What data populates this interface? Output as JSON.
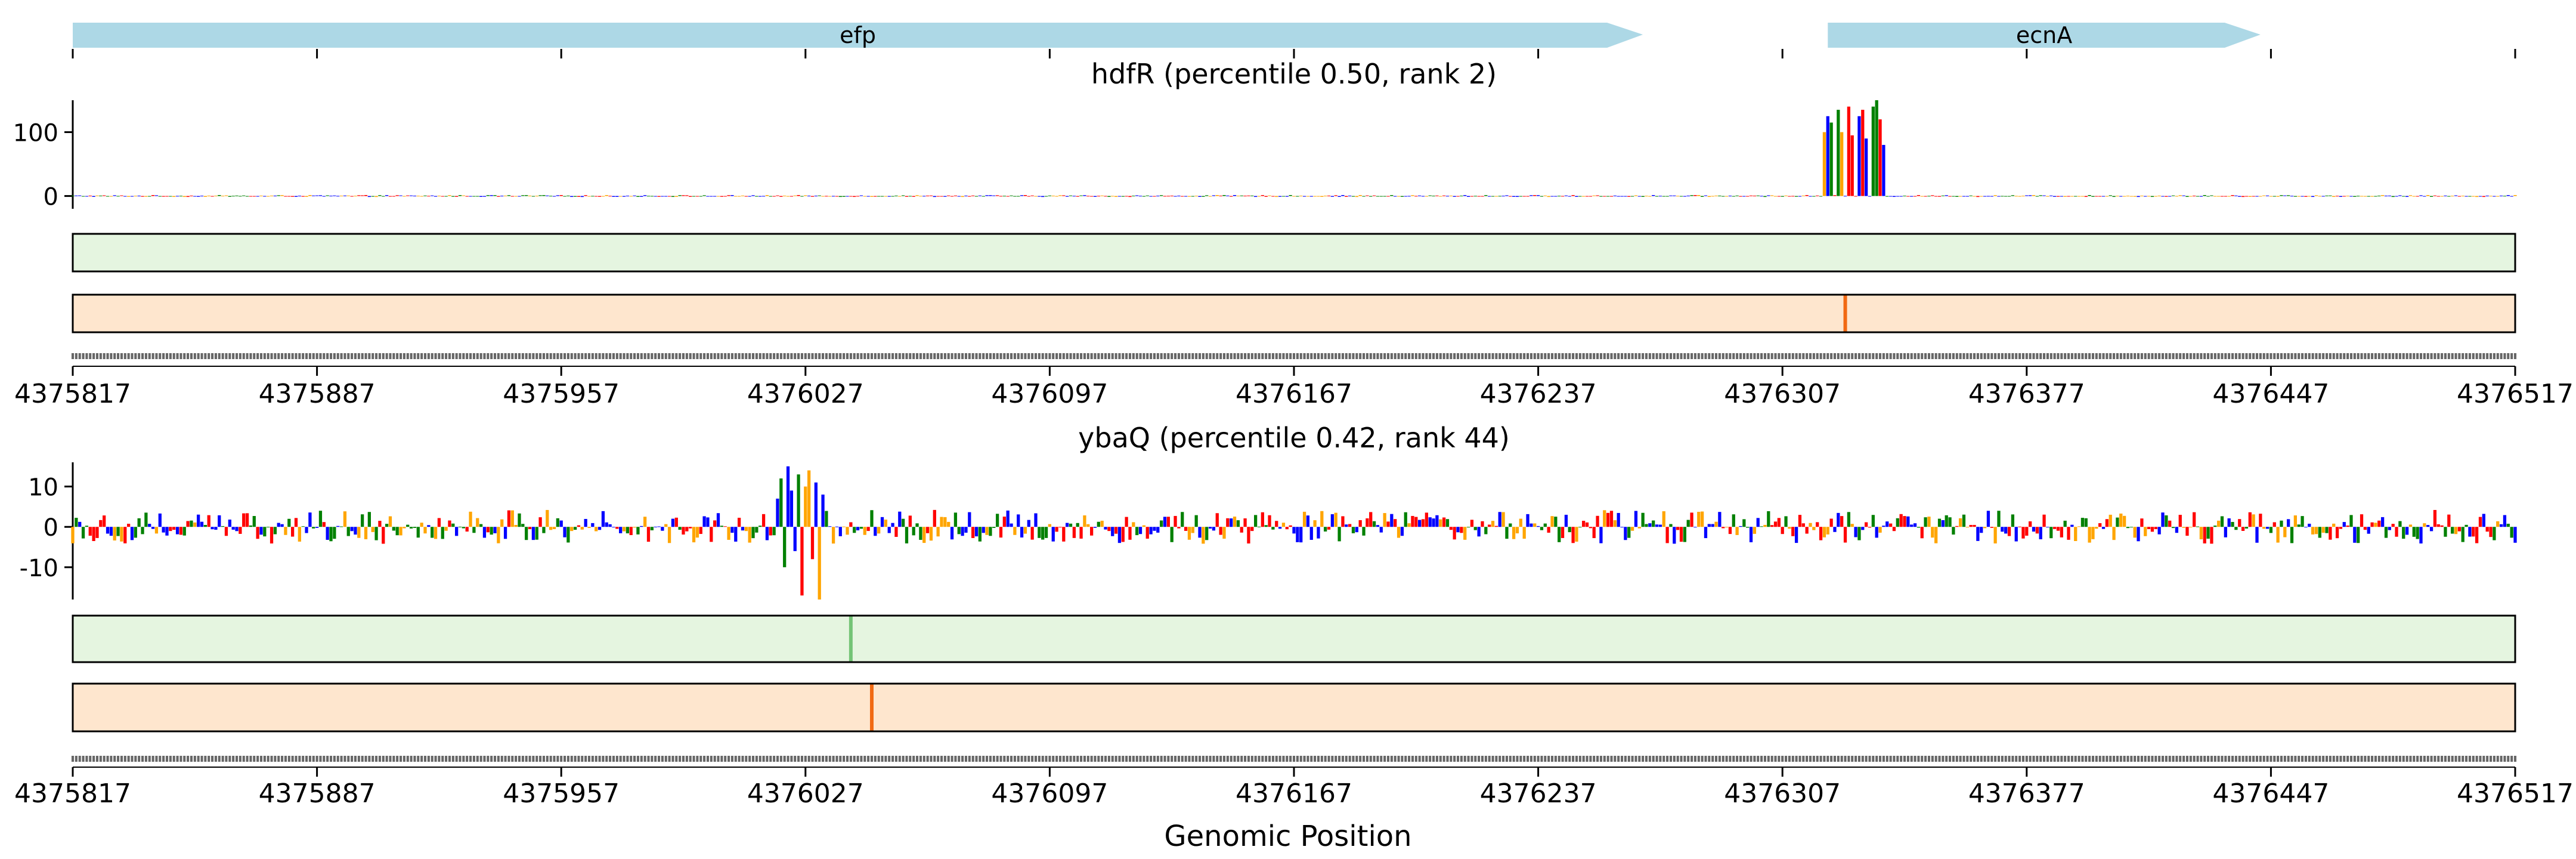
{
  "xlabel": "Genomic Position",
  "xrange": [
    4375817,
    4376517
  ],
  "x_ticks": [
    4375817,
    4375887,
    4375957,
    4376027,
    4376097,
    4376167,
    4376237,
    4376307,
    4376377,
    4376447,
    4376517
  ],
  "genes": [
    {
      "name": "efp",
      "start": 4375817,
      "end": 4376267,
      "strand": "+",
      "color": "#add8e6"
    },
    {
      "name": "ecnA",
      "start": 4376320,
      "end": 4376444,
      "strand": "+",
      "color": "#add8e6"
    }
  ],
  "colors": {
    "A": "#008000",
    "C": "#0000ff",
    "G": "#ffa500",
    "T": "#ff0000",
    "track1": "#e5f5e0",
    "track2": "#fee6ce",
    "track1_hot": "#74c476",
    "track2_hot": "#f16913"
  },
  "chart_data": [
    {
      "type": "bar",
      "title": "hdfR (percentile 0.50, rank 2)",
      "ylim": [
        -20,
        150
      ],
      "y_ticks": [
        0,
        100
      ],
      "baseline_noise": 3,
      "peaks": [
        {
          "x": 4376319,
          "value": 100
        },
        {
          "x": 4376320,
          "value": 125
        },
        {
          "x": 4376321,
          "value": 115
        },
        {
          "x": 4376323,
          "value": 135
        },
        {
          "x": 4376324,
          "value": 100
        },
        {
          "x": 4376326,
          "value": 140
        },
        {
          "x": 4376327,
          "value": 95
        },
        {
          "x": 4376329,
          "value": 125
        },
        {
          "x": 4376330,
          "value": 135
        },
        {
          "x": 4376331,
          "value": 90
        },
        {
          "x": 4376333,
          "value": 140
        },
        {
          "x": 4376334,
          "value": 150
        },
        {
          "x": 4376335,
          "value": 120
        },
        {
          "x": 4376336,
          "value": 80
        }
      ],
      "heat_tracks": [
        {
          "name": "track-green",
          "hot": []
        },
        {
          "name": "track-orange",
          "hot": [
            4376325
          ]
        }
      ]
    },
    {
      "type": "bar",
      "title": "ybaQ (percentile 0.42, rank 44)",
      "ylim": [
        -18,
        16
      ],
      "y_ticks": [
        -10,
        0,
        10
      ],
      "baseline_noise": 3,
      "peaks": [
        {
          "x": 4376019,
          "value": 7
        },
        {
          "x": 4376020,
          "value": 12
        },
        {
          "x": 4376021,
          "value": -10
        },
        {
          "x": 4376022,
          "value": 15
        },
        {
          "x": 4376023,
          "value": 9
        },
        {
          "x": 4376024,
          "value": -6
        },
        {
          "x": 4376025,
          "value": 13
        },
        {
          "x": 4376026,
          "value": -17
        },
        {
          "x": 4376027,
          "value": 10
        },
        {
          "x": 4376028,
          "value": 14
        },
        {
          "x": 4376029,
          "value": -8
        },
        {
          "x": 4376030,
          "value": 11
        },
        {
          "x": 4376031,
          "value": -18
        },
        {
          "x": 4376032,
          "value": 8
        }
      ],
      "heat_tracks": [
        {
          "name": "track-green",
          "hot": [
            4376040
          ]
        },
        {
          "name": "track-orange",
          "hot": [
            4376046
          ]
        }
      ]
    }
  ]
}
